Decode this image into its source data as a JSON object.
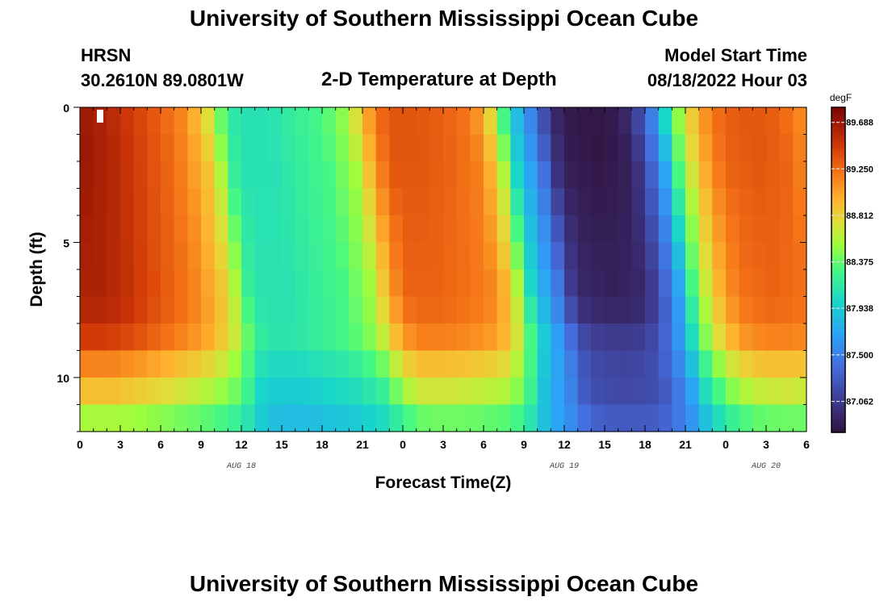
{
  "header": {
    "title": "University of Southern Mississippi Ocean Cube",
    "station": "HRSN",
    "coords": "30.2610N  89.0801W",
    "subtitle": "2-D Temperature at Depth",
    "model_label": "Model Start Time",
    "model_time": "08/18/2022 Hour 03"
  },
  "footer": {
    "title": "University of Southern Mississippi Ocean Cube"
  },
  "chart_data": {
    "type": "heatmap",
    "title": "2-D Temperature at Depth",
    "xlabel": "Forecast Time(Z)",
    "ylabel": "Depth (ft)",
    "x_range_hours": [
      0,
      54
    ],
    "y_range_ft": [
      0,
      12
    ],
    "x_ticks": [
      {
        "h": 0,
        "label": "0"
      },
      {
        "h": 3,
        "label": "3"
      },
      {
        "h": 6,
        "label": "6"
      },
      {
        "h": 9,
        "label": "9"
      },
      {
        "h": 12,
        "label": "12"
      },
      {
        "h": 15,
        "label": "15"
      },
      {
        "h": 18,
        "label": "18"
      },
      {
        "h": 21,
        "label": "21"
      },
      {
        "h": 24,
        "label": "0"
      },
      {
        "h": 27,
        "label": "3"
      },
      {
        "h": 30,
        "label": "6"
      },
      {
        "h": 33,
        "label": "9"
      },
      {
        "h": 36,
        "label": "12"
      },
      {
        "h": 39,
        "label": "15"
      },
      {
        "h": 42,
        "label": "18"
      },
      {
        "h": 45,
        "label": "21"
      },
      {
        "h": 48,
        "label": "0"
      },
      {
        "h": 51,
        "label": "3"
      },
      {
        "h": 54,
        "label": "6"
      }
    ],
    "date_labels": [
      {
        "h": 12,
        "label": "AUG 18"
      },
      {
        "h": 36,
        "label": "AUG 19"
      },
      {
        "h": 51,
        "label": "AUG 20"
      }
    ],
    "y_ticks": [
      {
        "v": 0,
        "label": "0"
      },
      {
        "v": 5,
        "label": "5"
      },
      {
        "v": 10,
        "label": "10"
      }
    ],
    "depth_levels_ft": [
      0.5,
      1.5,
      2.5,
      3.5,
      4.5,
      5.5,
      6.5,
      7.5,
      8.5,
      9.5,
      10.5,
      11.5
    ],
    "colorbar": {
      "units": "degF",
      "min": 86.77,
      "max": 89.83,
      "tick_values": [
        89.688,
        89.25,
        88.812,
        88.375,
        87.938,
        87.5,
        87.062
      ],
      "tick_labels": [
        "89.688",
        "89.250",
        "88.812",
        "88.375",
        "87.938",
        "87.500",
        "87.062"
      ]
    },
    "time_series_hours": [
      0,
      2,
      4,
      6,
      7.5,
      9,
      10,
      11,
      12,
      14,
      16,
      18,
      20,
      21,
      22,
      23,
      25,
      27,
      29,
      30,
      31,
      32,
      33,
      34,
      35,
      36,
      38,
      40,
      41,
      42,
      43,
      44,
      45,
      46,
      47,
      48,
      50,
      52,
      54
    ],
    "surface_temp_degF": [
      89.7,
      89.6,
      89.45,
      89.3,
      89.15,
      88.9,
      88.6,
      88.2,
      88.1,
      88.1,
      88.2,
      88.3,
      88.55,
      88.9,
      89.2,
      89.35,
      89.35,
      89.3,
      89.2,
      89.0,
      88.6,
      88.0,
      87.7,
      87.4,
      87.0,
      86.85,
      86.8,
      86.85,
      87.0,
      87.3,
      87.7,
      88.3,
      88.7,
      89.0,
      89.2,
      89.3,
      89.35,
      89.3,
      89.1
    ],
    "depth_factor": [
      1.0,
      1.0,
      0.985,
      0.975,
      0.965,
      0.955,
      0.945,
      0.92,
      0.83,
      0.7,
      0.6,
      0.45
    ],
    "marker": {
      "h": 1.5,
      "depth_ft": 0.5
    }
  }
}
